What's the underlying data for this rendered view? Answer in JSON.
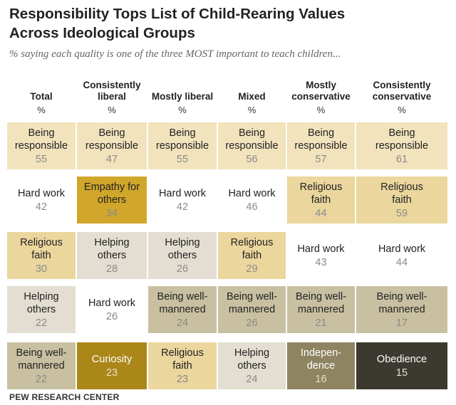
{
  "title_line1": "Responsibility Tops List of Child-Rearing Values",
  "title_line2": "Across Ideological Groups",
  "subtitle": "% saying each quality is one of the three MOST important to teach children...",
  "footer": "PEW RESEARCH CENTER",
  "colors": {
    "white": "#ffffff",
    "light_gray": "#e3ded1",
    "light_tan": "#f2e3bd",
    "mid_tan": "#ebd69d",
    "khaki": "#c8c0a1",
    "gold": "#d0a62b",
    "dark_gold": "#ab8619",
    "olive": "#8f8462",
    "dark_olive": "#3c3a30"
  },
  "chart_data": {
    "type": "table",
    "columns": [
      {
        "header": "Total",
        "unit": "%"
      },
      {
        "header": "Consistently liberal",
        "unit": "%"
      },
      {
        "header": "Mostly liberal",
        "unit": "%"
      },
      {
        "header": "Mixed",
        "unit": "%"
      },
      {
        "header": "Mostly conservative",
        "unit": "%"
      },
      {
        "header": "Consistently conservative",
        "unit": "%"
      }
    ],
    "rows": [
      [
        {
          "label": "Being responsible",
          "value": 55,
          "color": "light_tan"
        },
        {
          "label": "Being responsible",
          "value": 47,
          "color": "light_tan"
        },
        {
          "label": "Being responsible",
          "value": 55,
          "color": "light_tan"
        },
        {
          "label": "Being responsible",
          "value": 56,
          "color": "light_tan"
        },
        {
          "label": "Being responsible",
          "value": 57,
          "color": "light_tan"
        },
        {
          "label": "Being responsible",
          "value": 61,
          "color": "light_tan"
        }
      ],
      [
        {
          "label": "Hard work",
          "value": 42,
          "color": "white"
        },
        {
          "label": "Empathy for others",
          "value": 34,
          "color": "gold"
        },
        {
          "label": "Hard work",
          "value": 42,
          "color": "white"
        },
        {
          "label": "Hard work",
          "value": 46,
          "color": "white"
        },
        {
          "label": "Religious faith",
          "value": 44,
          "color": "mid_tan"
        },
        {
          "label": "Religious faith",
          "value": 59,
          "color": "mid_tan"
        }
      ],
      [
        {
          "label": "Religious faith",
          "value": 30,
          "color": "mid_tan"
        },
        {
          "label": "Helping others",
          "value": 28,
          "color": "light_gray"
        },
        {
          "label": "Helping others",
          "value": 26,
          "color": "light_gray"
        },
        {
          "label": "Religious faith",
          "value": 29,
          "color": "mid_tan"
        },
        {
          "label": "Hard work",
          "value": 43,
          "color": "white"
        },
        {
          "label": "Hard work",
          "value": 44,
          "color": "white"
        }
      ],
      [
        {
          "label": "Helping others",
          "value": 22,
          "color": "light_gray"
        },
        {
          "label": "Hard work",
          "value": 26,
          "color": "white"
        },
        {
          "label": "Being well-mannered",
          "value": 24,
          "color": "khaki"
        },
        {
          "label": "Being well-mannered",
          "value": 26,
          "color": "khaki"
        },
        {
          "label": "Being well-mannered",
          "value": 21,
          "color": "khaki"
        },
        {
          "label": "Being well-mannered",
          "value": 17,
          "color": "khaki"
        }
      ],
      [
        {
          "label": "Being well-mannered",
          "value": 22,
          "color": "khaki"
        },
        {
          "label": "Curiosity",
          "value": 23,
          "color": "dark_gold"
        },
        {
          "label": "Religious faith",
          "value": 23,
          "color": "mid_tan"
        },
        {
          "label": "Helping others",
          "value": 24,
          "color": "light_gray"
        },
        {
          "label": "Indepen-dence",
          "value": 16,
          "color": "olive"
        },
        {
          "label": "Obedience",
          "value": 15,
          "color": "dark_olive"
        }
      ]
    ]
  }
}
